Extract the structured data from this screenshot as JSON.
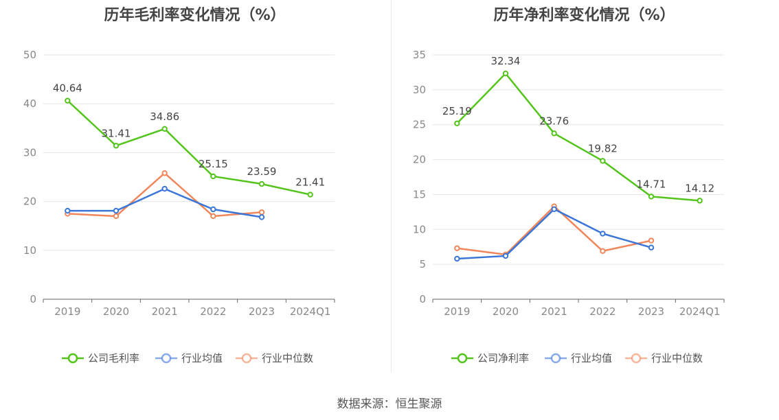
{
  "source": "数据来源：恒生聚源",
  "chart_data": [
    {
      "type": "line",
      "title": "历年毛利率变化情况（%）",
      "categories": [
        "2019",
        "2020",
        "2021",
        "2022",
        "2023",
        "2024Q1"
      ],
      "ylim": [
        0,
        50
      ],
      "yticks": [
        0,
        10,
        20,
        30,
        40,
        50
      ],
      "grid": true,
      "legend_position": "bottom",
      "series": [
        {
          "name": "公司毛利率",
          "color": "#52c41a",
          "labeled": true,
          "values": [
            40.64,
            31.41,
            34.86,
            25.15,
            23.59,
            21.41
          ],
          "labels": [
            "40.64",
            "31.41",
            "34.86",
            "25.15",
            "23.59",
            "21.41"
          ]
        },
        {
          "name": "行业均值",
          "color": "#3a75d8",
          "labeled": false,
          "values": [
            18.1,
            18.1,
            22.6,
            18.4,
            16.8,
            null
          ]
        },
        {
          "name": "行业中位数",
          "color": "#f0865a",
          "labeled": false,
          "values": [
            17.5,
            17.0,
            25.8,
            17.0,
            17.8,
            null
          ]
        }
      ]
    },
    {
      "type": "line",
      "title": "历年净利率变化情况（%）",
      "categories": [
        "2019",
        "2020",
        "2021",
        "2022",
        "2023",
        "2024Q1"
      ],
      "ylim": [
        0,
        35
      ],
      "yticks": [
        0,
        5,
        10,
        15,
        20,
        25,
        30,
        35
      ],
      "grid": true,
      "legend_position": "bottom",
      "series": [
        {
          "name": "公司净利率",
          "color": "#52c41a",
          "labeled": true,
          "values": [
            25.19,
            32.34,
            23.76,
            19.82,
            14.71,
            14.12
          ],
          "labels": [
            "25.19",
            "32.34",
            "23.76",
            "19.82",
            "14.71",
            "14.12"
          ]
        },
        {
          "name": "行业均值",
          "color": "#3a75d8",
          "labeled": false,
          "values": [
            5.8,
            6.2,
            12.9,
            9.4,
            7.4,
            null
          ]
        },
        {
          "name": "行业中位数",
          "color": "#f0865a",
          "labeled": false,
          "values": [
            7.3,
            6.4,
            13.3,
            6.9,
            8.4,
            null
          ]
        }
      ]
    }
  ]
}
